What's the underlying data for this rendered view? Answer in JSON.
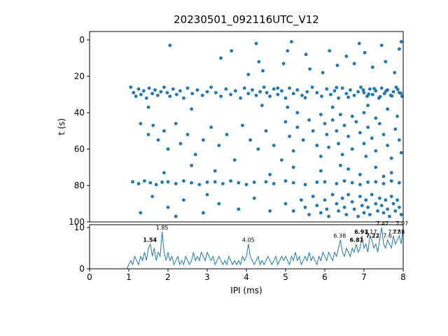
{
  "title": "20230501_092116UTC_V12",
  "colors": {
    "accent": "#1f77b4",
    "axis": "#000000"
  },
  "axes": {
    "scatter": {
      "ylabel": "t (s)",
      "yticks": [
        0,
        20,
        40,
        60,
        80,
        100
      ],
      "xlim": [
        0,
        8
      ],
      "ylim": [
        100,
        0
      ]
    },
    "rate": {
      "xlabel": "IPI (ms)",
      "xticks": [
        0,
        1,
        2,
        3,
        4,
        5,
        6,
        7,
        8
      ],
      "yticks": [
        0,
        10
      ],
      "xlim": [
        0,
        8
      ],
      "ylim": [
        0,
        10.7
      ]
    }
  },
  "chart_data": [
    {
      "type": "scatter",
      "title": "20230501_092116UTC_V12",
      "xlabel": "IPI (ms)",
      "ylabel": "t (s)",
      "xlim": [
        0,
        8
      ],
      "ylim": [
        100,
        0
      ],
      "marker_color": "#1f77b4",
      "points": [
        [
          1.05,
          26
        ],
        [
          1.12,
          29
        ],
        [
          1.18,
          31
        ],
        [
          1.25,
          27
        ],
        [
          1.31,
          30
        ],
        [
          1.38,
          28
        ],
        [
          1.45,
          32
        ],
        [
          1.52,
          26.5
        ],
        [
          1.6,
          29.5
        ],
        [
          1.67,
          27.5
        ],
        [
          1.74,
          30.5
        ],
        [
          1.82,
          28.5
        ],
        [
          1.9,
          26
        ],
        [
          1.98,
          29
        ],
        [
          2.05,
          31
        ],
        [
          2.13,
          27
        ],
        [
          2.22,
          30
        ],
        [
          2.31,
          28
        ],
        [
          2.4,
          32
        ],
        [
          2.5,
          26.5
        ],
        [
          2.62,
          29.5
        ],
        [
          2.75,
          27.5
        ],
        [
          2.88,
          30.5
        ],
        [
          3.0,
          28.5
        ],
        [
          3.1,
          26
        ],
        [
          3.22,
          29
        ],
        [
          3.35,
          31
        ],
        [
          3.48,
          27
        ],
        [
          3.6,
          30
        ],
        [
          3.72,
          28
        ],
        [
          3.85,
          32
        ],
        [
          3.95,
          26.5
        ],
        [
          4.05,
          29.5
        ],
        [
          4.15,
          27.5
        ],
        [
          4.25,
          30.5
        ],
        [
          4.35,
          28.5
        ],
        [
          4.45,
          26
        ],
        [
          4.52,
          29
        ],
        [
          4.6,
          31
        ],
        [
          4.7,
          27
        ],
        [
          4.8,
          30
        ],
        [
          4.9,
          28
        ],
        [
          5.0,
          32
        ],
        [
          5.1,
          26.5
        ],
        [
          5.2,
          29.5
        ],
        [
          5.3,
          27.5
        ],
        [
          5.42,
          30.5
        ],
        [
          5.55,
          28.5
        ],
        [
          5.68,
          26
        ],
        [
          5.8,
          29
        ],
        [
          5.92,
          31
        ],
        [
          6.05,
          27
        ],
        [
          6.15,
          30
        ],
        [
          6.25,
          28
        ],
        [
          6.35,
          32
        ],
        [
          6.45,
          26.5
        ],
        [
          6.55,
          29.5
        ],
        [
          6.65,
          27.5
        ],
        [
          6.75,
          30.5
        ],
        [
          6.85,
          28.5
        ],
        [
          6.92,
          26
        ],
        [
          7.0,
          29
        ],
        [
          7.08,
          31
        ],
        [
          7.15,
          27
        ],
        [
          7.22,
          30
        ],
        [
          7.3,
          28
        ],
        [
          7.38,
          32
        ],
        [
          7.45,
          26.5
        ],
        [
          7.52,
          29.5
        ],
        [
          7.6,
          27.5
        ],
        [
          7.68,
          30.5
        ],
        [
          7.75,
          28.5
        ],
        [
          7.82,
          26
        ],
        [
          7.9,
          29
        ],
        [
          7.97,
          31
        ],
        [
          6.98,
          27.5
        ],
        [
          7.12,
          29.8
        ],
        [
          7.26,
          26.8
        ],
        [
          7.41,
          31.2
        ],
        [
          7.56,
          28.2
        ],
        [
          7.71,
          30.8
        ],
        [
          7.86,
          27.2
        ],
        [
          7.94,
          29.3
        ],
        [
          6.6,
          31.5
        ],
        [
          6.3,
          26.2
        ],
        [
          5.5,
          31.8
        ],
        [
          4.8,
          26.5
        ],
        [
          1.1,
          78
        ],
        [
          1.25,
          79
        ],
        [
          1.4,
          77.5
        ],
        [
          1.55,
          78.5
        ],
        [
          1.7,
          79.5
        ],
        [
          1.85,
          78.2
        ],
        [
          2.0,
          78
        ],
        [
          2.2,
          79
        ],
        [
          2.4,
          77.5
        ],
        [
          2.6,
          78.5
        ],
        [
          2.8,
          79.5
        ],
        [
          3.0,
          78.2
        ],
        [
          3.2,
          78
        ],
        [
          3.4,
          79
        ],
        [
          3.6,
          77.5
        ],
        [
          3.8,
          78.5
        ],
        [
          4.0,
          79.5
        ],
        [
          4.2,
          78.2
        ],
        [
          4.5,
          78
        ],
        [
          4.7,
          79
        ],
        [
          5.0,
          77.5
        ],
        [
          5.2,
          78.5
        ],
        [
          5.5,
          79.5
        ],
        [
          5.8,
          78.2
        ],
        [
          6.0,
          78
        ],
        [
          6.3,
          79
        ],
        [
          6.5,
          77.5
        ],
        [
          6.7,
          78.5
        ],
        [
          6.9,
          79.5
        ],
        [
          7.1,
          78.2
        ],
        [
          7.3,
          78
        ],
        [
          7.5,
          79
        ],
        [
          7.7,
          77.5
        ],
        [
          7.9,
          78.5
        ],
        [
          2.05,
          3
        ],
        [
          3.62,
          6
        ],
        [
          4.25,
          2
        ],
        [
          4.32,
          12
        ],
        [
          4.95,
          13
        ],
        [
          5.05,
          6
        ],
        [
          5.15,
          1
        ],
        [
          5.52,
          8
        ],
        [
          5.62,
          16
        ],
        [
          5.95,
          18
        ],
        [
          6.12,
          6
        ],
        [
          6.32,
          14
        ],
        [
          6.55,
          9
        ],
        [
          6.75,
          13
        ],
        [
          6.88,
          2
        ],
        [
          7.02,
          7
        ],
        [
          7.22,
          15
        ],
        [
          7.45,
          3
        ],
        [
          7.55,
          12
        ],
        [
          7.78,
          18
        ],
        [
          7.9,
          5
        ],
        [
          7.95,
          1
        ],
        [
          3.35,
          10
        ],
        [
          4.05,
          19
        ],
        [
          4.42,
          17
        ],
        [
          1.5,
          37
        ],
        [
          2.6,
          38
        ],
        [
          4.4,
          36
        ],
        [
          5.05,
          37
        ],
        [
          5.3,
          40
        ],
        [
          5.9,
          41
        ],
        [
          6.2,
          37
        ],
        [
          6.4,
          41
        ],
        [
          6.7,
          42
        ],
        [
          7.0,
          40
        ],
        [
          7.1,
          36
        ],
        [
          7.3,
          43
        ],
        [
          7.6,
          38
        ],
        [
          7.85,
          42
        ],
        [
          1.3,
          46
        ],
        [
          1.5,
          52
        ],
        [
          1.62,
          47
        ],
        [
          1.75,
          55
        ],
        [
          1.9,
          50
        ],
        [
          2.0,
          60
        ],
        [
          2.2,
          46
        ],
        [
          2.32,
          57
        ],
        [
          2.5,
          52
        ],
        [
          2.7,
          63
        ],
        [
          2.9,
          55
        ],
        [
          3.1,
          48
        ],
        [
          3.3,
          58
        ],
        [
          3.5,
          52
        ],
        [
          3.7,
          66
        ],
        [
          3.9,
          47
        ],
        [
          4.1,
          55
        ],
        [
          4.3,
          60
        ],
        [
          4.5,
          50
        ],
        [
          4.7,
          58
        ],
        [
          4.9,
          66
        ],
        [
          5.0,
          45
        ],
        [
          5.1,
          53
        ],
        [
          5.2,
          61
        ],
        [
          5.3,
          48
        ],
        [
          5.45,
          55
        ],
        [
          5.6,
          44
        ],
        [
          5.7,
          50
        ],
        [
          5.8,
          58
        ],
        [
          5.9,
          64
        ],
        [
          6.0,
          46
        ],
        [
          6.05,
          52
        ],
        [
          6.1,
          59
        ],
        [
          6.2,
          44
        ],
        [
          6.3,
          50
        ],
        [
          6.35,
          57
        ],
        [
          6.45,
          63
        ],
        [
          6.5,
          47
        ],
        [
          6.6,
          53
        ],
        [
          6.7,
          60
        ],
        [
          6.8,
          45
        ],
        [
          6.9,
          51
        ],
        [
          7.0,
          57
        ],
        [
          7.05,
          64
        ],
        [
          7.1,
          48
        ],
        [
          7.2,
          54
        ],
        [
          7.3,
          61
        ],
        [
          7.4,
          46
        ],
        [
          7.5,
          52
        ],
        [
          7.6,
          58
        ],
        [
          7.7,
          65
        ],
        [
          7.8,
          49
        ],
        [
          7.9,
          55
        ],
        [
          7.95,
          62
        ],
        [
          1.9,
          73
        ],
        [
          2.6,
          69
        ],
        [
          3.2,
          72
        ],
        [
          4.6,
          74
        ],
        [
          5.2,
          70
        ],
        [
          5.9,
          72
        ],
        [
          6.4,
          69
        ],
        [
          6.9,
          74
        ],
        [
          7.3,
          70
        ],
        [
          7.7,
          73
        ],
        [
          6.6,
          71
        ],
        [
          7.5,
          75
        ],
        [
          5.0,
          90
        ],
        [
          5.2,
          94
        ],
        [
          5.4,
          88
        ],
        [
          5.5,
          92
        ],
        [
          5.6,
          96
        ],
        [
          5.7,
          86
        ],
        [
          5.8,
          91
        ],
        [
          5.9,
          95
        ],
        [
          6.0,
          88
        ],
        [
          6.05,
          93
        ],
        [
          6.1,
          97
        ],
        [
          6.2,
          85
        ],
        [
          6.3,
          90
        ],
        [
          6.35,
          94
        ],
        [
          6.45,
          87
        ],
        [
          6.5,
          92
        ],
        [
          6.55,
          96
        ],
        [
          6.6,
          85
        ],
        [
          6.7,
          89
        ],
        [
          6.75,
          93
        ],
        [
          6.85,
          97
        ],
        [
          6.9,
          86
        ],
        [
          6.95,
          91
        ],
        [
          7.0,
          95
        ],
        [
          7.05,
          88
        ],
        [
          7.1,
          92
        ],
        [
          7.15,
          96
        ],
        [
          7.2,
          85
        ],
        [
          7.3,
          90
        ],
        [
          7.35,
          94
        ],
        [
          7.4,
          87
        ],
        [
          7.45,
          91
        ],
        [
          7.5,
          95
        ],
        [
          7.55,
          88
        ],
        [
          7.6,
          93
        ],
        [
          7.65,
          97
        ],
        [
          7.7,
          86
        ],
        [
          7.75,
          90
        ],
        [
          7.8,
          94
        ],
        [
          7.85,
          88
        ],
        [
          7.9,
          92
        ],
        [
          7.95,
          96
        ],
        [
          1.3,
          95
        ],
        [
          1.6,
          86
        ],
        [
          2.0,
          92
        ],
        [
          2.2,
          97
        ],
        [
          2.4,
          88
        ],
        [
          2.9,
          95
        ],
        [
          3.3,
          90
        ],
        [
          3.8,
          93
        ],
        [
          4.2,
          87
        ],
        [
          4.6,
          94
        ],
        [
          3.0,
          85
        ]
      ]
    },
    {
      "type": "line",
      "xlabel": "IPI (ms)",
      "xlim": [
        0,
        8
      ],
      "ylim": [
        0,
        10.7
      ],
      "line_color": "#1f77b4",
      "x_start": 0,
      "x_step": 0.05,
      "values": [
        0,
        0,
        0,
        0,
        0,
        0,
        0,
        0,
        0,
        0,
        0,
        0,
        0,
        0,
        0,
        0,
        0,
        0,
        0,
        0,
        1,
        2,
        1,
        3,
        2,
        1,
        3,
        2,
        4,
        2,
        5,
        6,
        3,
        5,
        2,
        4,
        3,
        9,
        4,
        2,
        4,
        2,
        3,
        1,
        2,
        3,
        1,
        2,
        1,
        3,
        2,
        1,
        2,
        4,
        2,
        3,
        2,
        4,
        3,
        2,
        4,
        3,
        2,
        3,
        1,
        2,
        3,
        2,
        1,
        2,
        1,
        3,
        2,
        1,
        2,
        1,
        2,
        1,
        3,
        2,
        3,
        6,
        3,
        2,
        1,
        2,
        3,
        1,
        2,
        1,
        2,
        3,
        2,
        1,
        2,
        3,
        1,
        2,
        3,
        2,
        3,
        2,
        1,
        3,
        2,
        4,
        2,
        3,
        1,
        2,
        3,
        2,
        4,
        2,
        3,
        2,
        1,
        3,
        2,
        4,
        3,
        2,
        4,
        3,
        2,
        4,
        3,
        5,
        7,
        4,
        3,
        5,
        4,
        3,
        5,
        4,
        6,
        4,
        5,
        8,
        5,
        6,
        4,
        8,
        7,
        5,
        6,
        4,
        7,
        10,
        6,
        5,
        7,
        6,
        5,
        8,
        6,
        7,
        8,
        6,
        10
      ],
      "annotations": [
        {
          "x": 1.54,
          "y": 6,
          "label": "1.54",
          "bold": true
        },
        {
          "x": 1.85,
          "y": 9,
          "label": "1.85",
          "bold": false
        },
        {
          "x": 4.05,
          "y": 6,
          "label": "4.05",
          "bold": false
        },
        {
          "x": 6.38,
          "y": 7,
          "label": "6.38",
          "bold": false
        },
        {
          "x": 6.81,
          "y": 6,
          "label": "6.81",
          "bold": true
        },
        {
          "x": 6.93,
          "y": 8,
          "label": "6.93",
          "bold": true
        },
        {
          "x": 7.17,
          "y": 8,
          "label": "7.17",
          "bold": false
        },
        {
          "x": 7.22,
          "y": 7,
          "label": "7.22",
          "bold": true
        },
        {
          "x": 7.47,
          "y": 10,
          "label": "7.47",
          "bold": false
        },
        {
          "x": 7.6,
          "y": 7,
          "label": "7.6",
          "bold": false
        },
        {
          "x": 7.77,
          "y": 8,
          "label": "7.77",
          "bold": false
        },
        {
          "x": 7.88,
          "y": 8,
          "label": "7.88",
          "bold": false
        },
        {
          "x": 7.97,
          "y": 10,
          "label": "7.97",
          "bold": false
        }
      ]
    }
  ]
}
